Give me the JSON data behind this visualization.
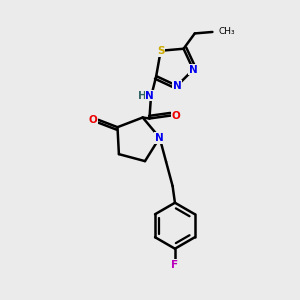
{
  "bg_color": "#ebebeb",
  "atom_colors": {
    "C": "#000000",
    "N": "#0000ee",
    "O": "#ee0000",
    "S": "#ccaa00",
    "F": "#bb00bb",
    "H": "#336666"
  },
  "bond_color": "#000000",
  "bond_width": 1.8
}
